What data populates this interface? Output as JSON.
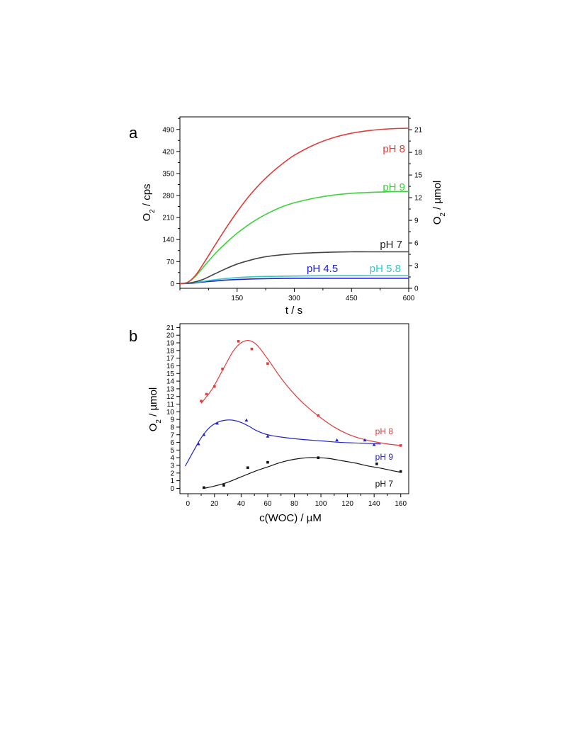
{
  "chart_data": [
    {
      "panel": "a",
      "type": "line",
      "xlabel": "t / s",
      "ylabel": "O2 / cps",
      "ylabel_right": "O2 / µmol",
      "xlim": [
        0,
        600
      ],
      "ylim": [
        -15,
        530
      ],
      "ylim_right": [
        0,
        22.7
      ],
      "x_ticks": [
        150,
        300,
        450,
        600
      ],
      "y_ticks": [
        0,
        70,
        140,
        210,
        280,
        350,
        420,
        490
      ],
      "y_ticks_right": [
        0,
        3,
        6,
        9,
        12,
        15,
        18,
        21
      ],
      "grid": false,
      "series": [
        {
          "name": "pH 8",
          "color": "#e03c3c",
          "x": [
            0,
            20,
            40,
            60,
            90,
            120,
            150,
            180,
            210,
            240,
            270,
            300,
            350,
            400,
            450,
            500,
            550,
            600
          ],
          "y": [
            0,
            4,
            25,
            60,
            118,
            175,
            228,
            276,
            317,
            352,
            382,
            408,
            440,
            463,
            478,
            487,
            492,
            494
          ]
        },
        {
          "name": "pH 9",
          "color": "#3cd23c",
          "x": [
            0,
            20,
            40,
            60,
            90,
            120,
            150,
            180,
            210,
            240,
            270,
            300,
            350,
            400,
            450,
            500,
            550,
            600
          ],
          "y": [
            0,
            4,
            22,
            50,
            92,
            128,
            160,
            187,
            210,
            229,
            245,
            257,
            271,
            281,
            287,
            290,
            292,
            293
          ]
        },
        {
          "name": "pH 7",
          "color": "#444444",
          "x": [
            0,
            30,
            60,
            90,
            120,
            150,
            180,
            210,
            240,
            300,
            350,
            400,
            450,
            500,
            550,
            600
          ],
          "y": [
            0,
            3,
            13,
            30,
            47,
            62,
            73,
            82,
            88,
            95,
            98,
            100,
            101,
            101,
            101,
            101
          ]
        },
        {
          "name": "pH 5.8",
          "color": "#35c6c6",
          "x": [
            0,
            30,
            60,
            90,
            120,
            150,
            200,
            250,
            300,
            400,
            500,
            600
          ],
          "y": [
            0,
            2,
            7,
            12,
            16,
            19,
            22,
            23,
            24,
            25,
            25,
            25
          ]
        },
        {
          "name": "pH 4.5",
          "color": "#2222cc",
          "x": [
            0,
            30,
            60,
            90,
            120,
            150,
            200,
            250,
            300,
            400,
            500,
            600
          ],
          "y": [
            0,
            1,
            5,
            8,
            11,
            13,
            15,
            16,
            17,
            17,
            17,
            17
          ]
        }
      ]
    },
    {
      "panel": "b",
      "type": "scatter",
      "xlabel": "c(WOC) / µM",
      "ylabel": "O2 / µmol",
      "xlim": [
        -6,
        166
      ],
      "ylim": [
        -0.7,
        21.5
      ],
      "x_ticks": [
        0,
        20,
        40,
        60,
        80,
        100,
        120,
        140,
        160
      ],
      "y_ticks": [
        0,
        1,
        2,
        3,
        4,
        5,
        6,
        7,
        8,
        9,
        10,
        11,
        12,
        13,
        14,
        15,
        16,
        17,
        18,
        19,
        20,
        21
      ],
      "grid": false,
      "series": [
        {
          "name": "pH 8",
          "color": "#e03c3c",
          "marker": "square",
          "points": [
            [
              10,
              11.4
            ],
            [
              14,
              12.3
            ],
            [
              20,
              13.3
            ],
            [
              26,
              15.6
            ],
            [
              38,
              19.2
            ],
            [
              48,
              18.2
            ],
            [
              60,
              16.3
            ],
            [
              98,
              9.5
            ],
            [
              160,
              5.6
            ]
          ],
          "fit_x": [
            10,
            18,
            26,
            34,
            40,
            46,
            52,
            60,
            70,
            80,
            90,
            100,
            110,
            120,
            130,
            140,
            150,
            160
          ],
          "fit_y": [
            11.1,
            12.9,
            15.4,
            17.9,
            19.0,
            19.3,
            18.7,
            16.9,
            14.4,
            12.3,
            10.6,
            9.2,
            8.0,
            7.1,
            6.5,
            6.1,
            5.8,
            5.6
          ]
        },
        {
          "name": "pH 9",
          "color": "#2222cc",
          "marker": "triangle",
          "points": [
            [
              8,
              5.8
            ],
            [
              12,
              7.0
            ],
            [
              22,
              8.5
            ],
            [
              44,
              8.9
            ],
            [
              60,
              6.8
            ],
            [
              112,
              6.3
            ],
            [
              133,
              6.3
            ],
            [
              140,
              5.7
            ]
          ],
          "fit_x": [
            -2,
            4,
            10,
            16,
            22,
            28,
            34,
            40,
            46,
            52,
            60,
            70,
            85,
            100,
            115,
            130,
            145
          ],
          "fit_y": [
            2.9,
            4.8,
            6.6,
            7.9,
            8.6,
            8.9,
            8.9,
            8.6,
            8.1,
            7.5,
            7.0,
            6.7,
            6.4,
            6.2,
            6.0,
            5.9,
            5.8
          ]
        },
        {
          "name": "pH 7",
          "color": "#111111",
          "marker": "square",
          "points": [
            [
              12,
              0.1
            ],
            [
              27,
              0.4
            ],
            [
              45,
              2.7
            ],
            [
              60,
              3.4
            ],
            [
              98,
              4.0
            ],
            [
              142,
              3.2
            ],
            [
              160,
              2.2
            ]
          ],
          "fit_x": [
            12,
            20,
            30,
            40,
            50,
            60,
            70,
            80,
            90,
            98,
            106,
            116,
            126,
            136,
            146,
            154,
            160
          ],
          "fit_y": [
            0.0,
            0.3,
            0.8,
            1.5,
            2.2,
            2.8,
            3.4,
            3.8,
            4.0,
            4.0,
            3.9,
            3.6,
            3.3,
            2.9,
            2.6,
            2.3,
            2.1
          ]
        }
      ]
    }
  ]
}
